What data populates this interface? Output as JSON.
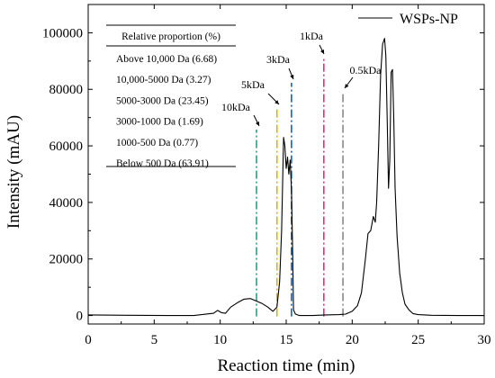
{
  "chart_data": {
    "type": "line",
    "xlabel": "Reaction time (min)",
    "ylabel": "Intensity (mAU)",
    "xlim": [
      0,
      30
    ],
    "ylim": [
      -3000,
      110000
    ],
    "x_ticks": [
      0,
      5,
      10,
      15,
      20,
      25,
      30
    ],
    "y_ticks": [
      0,
      20000,
      40000,
      60000,
      80000,
      100000
    ],
    "x_tick_labels": [
      "0",
      "5",
      "10",
      "15",
      "20",
      "25",
      "30"
    ],
    "y_tick_labels": [
      "0",
      "20000",
      "40000",
      "60000",
      "80000",
      "100000"
    ],
    "grid": false,
    "legend": {
      "position": "top-right",
      "entries": [
        "WSPs-NP"
      ]
    },
    "series": [
      {
        "name": "WSPs-NP",
        "color": "#000000",
        "x": [
          0,
          3,
          6,
          8,
          9.5,
          9.8,
          10.1,
          10.4,
          10.8,
          11.3,
          11.8,
          12.3,
          12.8,
          13.2,
          13.6,
          14.0,
          14.3,
          14.5,
          14.65,
          14.8,
          14.9,
          15.0,
          15.1,
          15.2,
          15.3,
          15.4,
          15.5,
          15.55,
          15.7,
          16.0,
          17.0,
          18.0,
          19.0,
          19.5,
          20.0,
          20.4,
          20.7,
          21.0,
          21.2,
          21.4,
          21.6,
          21.75,
          21.85,
          22.0,
          22.15,
          22.3,
          22.45,
          22.55,
          22.65,
          22.75,
          22.85,
          22.95,
          23.05,
          23.15,
          23.25,
          23.4,
          23.6,
          23.8,
          24.0,
          24.3,
          24.6,
          25,
          26,
          28,
          30
        ],
        "y": [
          200,
          100,
          0,
          0,
          800,
          1800,
          1000,
          800,
          3000,
          4500,
          5800,
          6000,
          5000,
          4200,
          3000,
          1500,
          3000,
          12000,
          30000,
          63000,
          60000,
          52000,
          56000,
          50000,
          55000,
          44000,
          20000,
          2000,
          500,
          0,
          0,
          200,
          300,
          500,
          1500,
          3500,
          8000,
          20000,
          29000,
          30000,
          35000,
          33000,
          40000,
          60000,
          85000,
          96000,
          98000,
          92000,
          70000,
          45000,
          55000,
          86000,
          87000,
          70000,
          45000,
          28000,
          15000,
          8000,
          4000,
          2000,
          700,
          300,
          100,
          0,
          0
        ]
      }
    ],
    "vertical_markers": [
      {
        "label": "10kDa",
        "x": 12.75,
        "color": "#2a9d8f",
        "style": "dash-dot"
      },
      {
        "label": "5kDa",
        "x": 14.3,
        "color": "#e0b200",
        "style": "dash-dot"
      },
      {
        "label": "3kDa",
        "x": 15.4,
        "color": "#1f5fa8",
        "style": "dash-dot"
      },
      {
        "label": "1kDa",
        "x": 17.85,
        "color": "#d6337a",
        "style": "dash-dot"
      },
      {
        "label": "0.5kDa",
        "x": 19.3,
        "color": "#888888",
        "style": "dash-dot"
      }
    ],
    "proportion_table": {
      "header": "Relative proportion (%)",
      "rows": [
        "Above 10,000 Da (6.68)",
        "10,000-5000 Da (3.27)",
        "5000-3000 Da (23.45)",
        "3000-1000 Da (1.69)",
        "1000-500 Da (0.77)",
        "Below 500 Da (63.91)"
      ]
    }
  }
}
